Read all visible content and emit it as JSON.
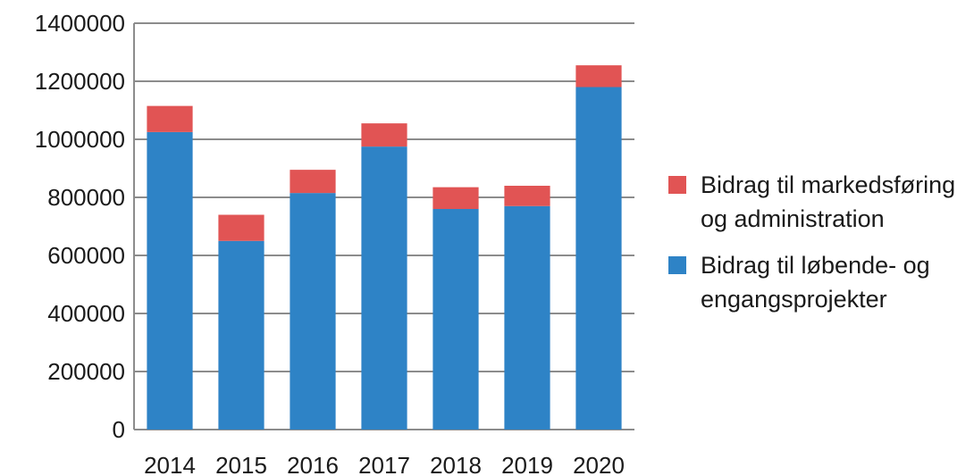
{
  "chart_data": {
    "type": "bar",
    "stacked": true,
    "title": "",
    "xlabel": "",
    "ylabel": "",
    "ylim": [
      0,
      1400000
    ],
    "y_ticks": [
      0,
      200000,
      400000,
      600000,
      800000,
      1000000,
      1200000,
      1400000
    ],
    "y_tick_labels": [
      "0",
      "200000",
      "400000",
      "600000",
      "800000",
      "1000000",
      "1200000",
      "1400000"
    ],
    "grid": true,
    "legend_position": "right",
    "categories": [
      "2014",
      "2015",
      "2016",
      "2017",
      "2018",
      "2019",
      "2020"
    ],
    "series": [
      {
        "name": "Bidrag til løbende- og engangsprojekter",
        "color": "#2e83c6",
        "values": [
          1025000,
          650000,
          815000,
          975000,
          760000,
          770000,
          1180000
        ]
      },
      {
        "name": "Bidrag til markedsføring og administration",
        "color": "#e15454",
        "values": [
          90000,
          90000,
          80000,
          80000,
          75000,
          70000,
          75000
        ]
      }
    ],
    "legend_order": [
      1,
      0
    ],
    "legend_lines": [
      "Bidrag til markedsføring\nog administration",
      "Bidrag til løbende- og\nengangsprojekter"
    ]
  }
}
